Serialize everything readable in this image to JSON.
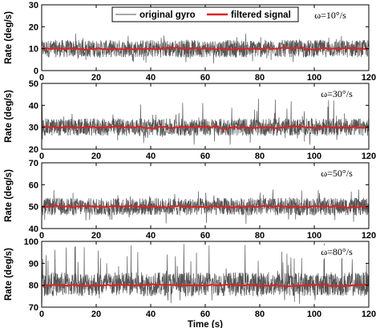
{
  "chart_data": [
    {
      "type": "line",
      "ylabel": "Rate (deg/s)",
      "xlabel": "",
      "xlim": [
        0,
        120
      ],
      "ylim": [
        0,
        30
      ],
      "xticks": [
        0,
        20,
        40,
        60,
        80,
        100,
        120
      ],
      "yticks": [
        0,
        10,
        20,
        30
      ],
      "annotation": "ω=10°/s",
      "legend": {
        "placement": "top",
        "entries": [
          "original gyro",
          "filtered signal"
        ]
      },
      "series": [
        {
          "name": "original gyro",
          "color": "#555555",
          "mean": 10,
          "band": [
            6,
            14
          ],
          "range": [
            3,
            17
          ]
        },
        {
          "name": "filtered signal",
          "color": "#dd2222",
          "mean": 10
        }
      ]
    },
    {
      "type": "line",
      "ylabel": "Rate (deg/s)",
      "xlabel": "",
      "xlim": [
        0,
        120
      ],
      "ylim": [
        20,
        50
      ],
      "xticks": [
        0,
        20,
        40,
        60,
        80,
        100,
        120
      ],
      "yticks": [
        20,
        30,
        40,
        50
      ],
      "annotation": "ω=30°/s",
      "series": [
        {
          "name": "original gyro",
          "color": "#555555",
          "mean": 30,
          "band": [
            26,
            34
          ],
          "range": [
            22,
            43
          ]
        },
        {
          "name": "filtered signal",
          "color": "#dd2222",
          "mean": 30
        }
      ]
    },
    {
      "type": "line",
      "ylabel": "Rate (deg/s)",
      "xlabel": "",
      "xlim": [
        0,
        120
      ],
      "ylim": [
        40,
        70
      ],
      "xticks": [
        0,
        20,
        40,
        60,
        80,
        100,
        120
      ],
      "yticks": [
        40,
        50,
        60,
        70
      ],
      "annotation": "ω=50°/s",
      "series": [
        {
          "name": "original gyro",
          "color": "#555555",
          "mean": 50,
          "band": [
            46,
            54
          ],
          "range": [
            42,
            58
          ]
        },
        {
          "name": "filtered signal",
          "color": "#dd2222",
          "mean": 50
        }
      ]
    },
    {
      "type": "line",
      "ylabel": "Rate (deg/s)",
      "xlabel": "Time (s)",
      "xlim": [
        0,
        120
      ],
      "ylim": [
        70,
        100
      ],
      "xticks": [
        0,
        20,
        40,
        60,
        80,
        100,
        120
      ],
      "yticks": [
        70,
        80,
        90,
        100
      ],
      "annotation": "ω=80°/s",
      "series": [
        {
          "name": "original gyro",
          "color": "#555555",
          "mean": 80,
          "band": [
            75,
            86
          ],
          "range": [
            71,
            100
          ]
        },
        {
          "name": "filtered signal",
          "color": "#dd2222",
          "mean": 80
        }
      ]
    }
  ]
}
